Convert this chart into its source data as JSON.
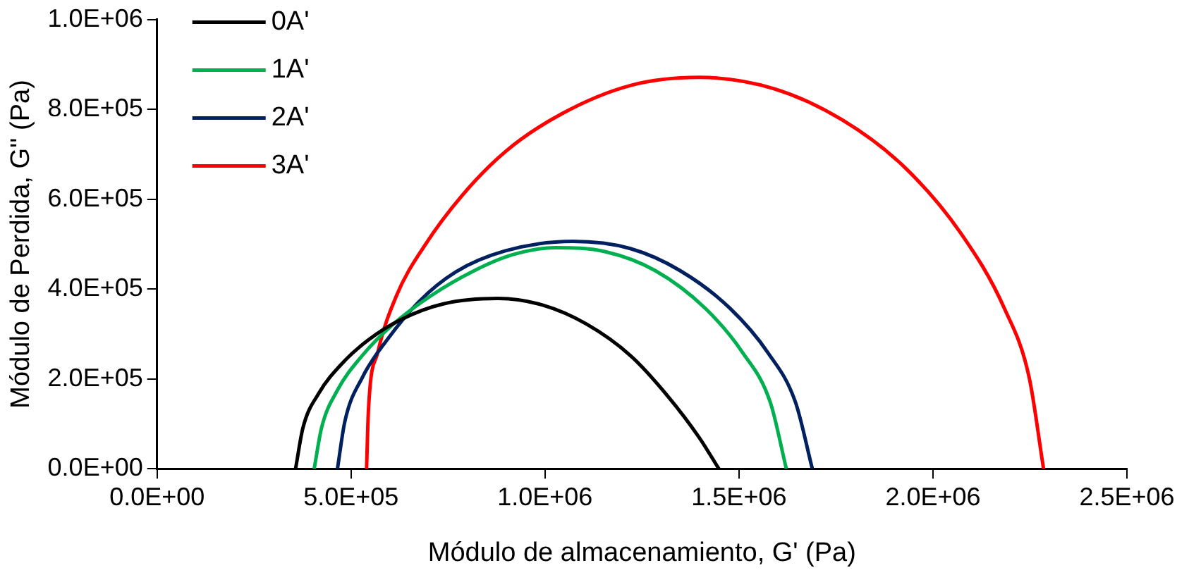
{
  "chart_data": {
    "type": "line",
    "xlabel": "Módulo de almacenamiento, G' (Pa)",
    "ylabel": "Módulo de Perdida, G'' (Pa)",
    "xlim": [
      0,
      2500000
    ],
    "ylim": [
      0,
      1000000
    ],
    "xticks": [
      {
        "value": 0,
        "label": "0.0E+00"
      },
      {
        "value": 500000,
        "label": "5.0E+05"
      },
      {
        "value": 1000000,
        "label": "1.0E+06"
      },
      {
        "value": 1500000,
        "label": "1.5E+06"
      },
      {
        "value": 2000000,
        "label": "2.0E+06"
      },
      {
        "value": 2500000,
        "label": "2.5E+06"
      }
    ],
    "yticks": [
      {
        "value": 0,
        "label": "0.0E+00"
      },
      {
        "value": 200000,
        "label": "2.0E+05"
      },
      {
        "value": 400000,
        "label": "4.0E+05"
      },
      {
        "value": 600000,
        "label": "6.0E+05"
      },
      {
        "value": 800000,
        "label": "8.0E+05"
      },
      {
        "value": 1000000,
        "label": "1.0E+06"
      }
    ],
    "grid": false,
    "legend": "top left",
    "marker": "none",
    "line_style": "solid",
    "series": [
      {
        "name": "0A'",
        "color": "#000000",
        "x": [
          357000,
          376000,
          417000,
          481000,
          545000,
          626000,
          738000,
          879000,
          995000,
          1107000,
          1220000,
          1317000,
          1397000,
          1448000
        ],
        "values": [
          0,
          91000,
          168000,
          238000,
          287000,
          331000,
          367000,
          379000,
          364000,
          322000,
          252000,
          161000,
          70000,
          0
        ]
      },
      {
        "name": "1A'",
        "color": "#00b050",
        "x": [
          405000,
          424000,
          465000,
          529000,
          609000,
          706000,
          818000,
          915000,
          1027000,
          1156000,
          1284000,
          1413000,
          1509000,
          1581000,
          1622000
        ],
        "values": [
          0,
          91000,
          175000,
          252000,
          322000,
          385000,
          441000,
          476000,
          492000,
          483000,
          441000,
          357000,
          259000,
          147000,
          0
        ]
      },
      {
        "name": "2A'",
        "color": "#002060",
        "x": [
          465000,
          484000,
          529000,
          593000,
          674000,
          770000,
          898000,
          1072000,
          1220000,
          1348000,
          1477000,
          1574000,
          1646000,
          1689000
        ],
        "values": [
          0,
          105000,
          203000,
          287000,
          371000,
          438000,
          485000,
          506000,
          490000,
          441000,
          357000,
          259000,
          147000,
          0
        ]
      },
      {
        "name": "3A'",
        "color": "#ff0000",
        "x": [
          540000,
          545000,
          569000,
          617000,
          690000,
          786000,
          898000,
          1043000,
          1220000,
          1397000,
          1590000,
          1767000,
          1927000,
          2072000,
          2184000,
          2248000,
          2285000
        ],
        "values": [
          0,
          133000,
          259000,
          385000,
          497000,
          608000,
          706000,
          790000,
          853000,
          871000,
          846000,
          776000,
          671000,
          524000,
          357000,
          203000,
          0
        ]
      }
    ]
  }
}
